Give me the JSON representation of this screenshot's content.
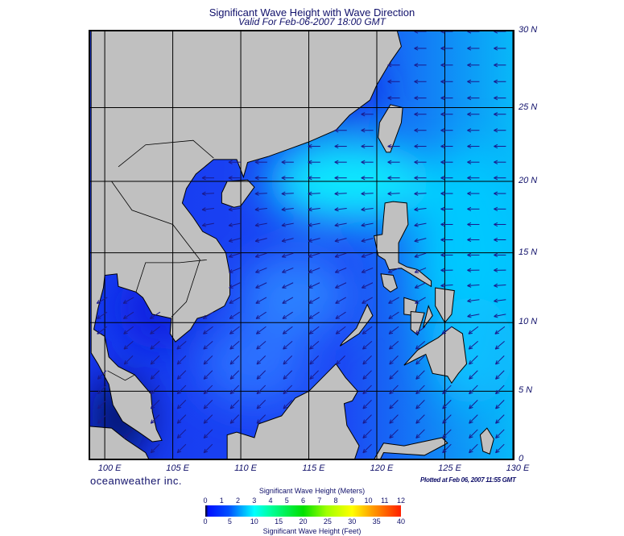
{
  "title": "Significant Wave Height with Wave Direction",
  "subtitle": "Valid For Feb-06-2007 18:00 GMT",
  "map": {
    "projection": "mercator",
    "lon_range": [
      99,
      130
    ],
    "lat_range": [
      0,
      30
    ],
    "lon_labels": [
      "100 E",
      "105 E",
      "110 E",
      "115 E",
      "120 E",
      "125 E",
      "130 E"
    ],
    "lon_values": [
      100,
      105,
      110,
      115,
      120,
      125,
      130
    ],
    "lat_labels": [
      "30 N",
      "25 N",
      "20 N",
      "15 N",
      "10 N",
      "5 N",
      "0"
    ],
    "lat_values": [
      30,
      25,
      20,
      15,
      10,
      5,
      0
    ],
    "land_color": "#c0c0c0",
    "ocean_base_color": "#1f40f4",
    "arrow_color": "#1a1a8c"
  },
  "brand": "oceanweather inc.",
  "plotted": "Plotted at Feb 06, 2007 11:55 GMT",
  "legend": {
    "title_top": "Significant Wave Height (Meters)",
    "title_bottom": "Significant Wave Height (Feet)",
    "meters": [
      "0",
      "1",
      "2",
      "3",
      "4",
      "5",
      "6",
      "7",
      "8",
      "9",
      "10",
      "11",
      "12"
    ],
    "feet": [
      "0",
      "5",
      "10",
      "15",
      "20",
      "25",
      "30",
      "35",
      "40"
    ]
  }
}
